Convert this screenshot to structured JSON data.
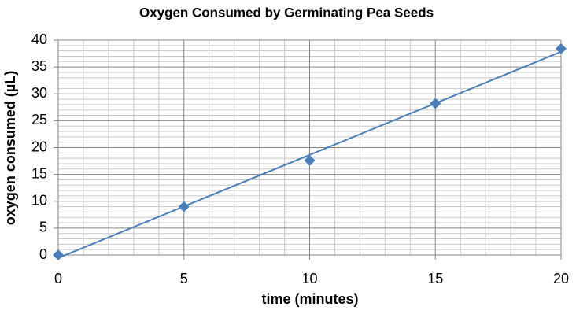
{
  "chart_data": {
    "type": "scatter",
    "title": "Oxygen Consumed by Germinating Pea Seeds",
    "x_label": "time (minutes)",
    "y_label": "oxygen consumed (µL)",
    "x": [
      0,
      5,
      10,
      15,
      20
    ],
    "values": [
      0,
      9,
      17.6,
      28.2,
      38.4
    ],
    "color": "#4a7ebb",
    "trendline": "linear",
    "xlim": [
      0,
      20
    ],
    "xticks": [
      0,
      5,
      10,
      15,
      20
    ],
    "ylim": [
      0,
      40
    ],
    "yticks": [
      0,
      5,
      10,
      15,
      20,
      25,
      30,
      35,
      40
    ],
    "grid": true,
    "minor_grid": true
  }
}
